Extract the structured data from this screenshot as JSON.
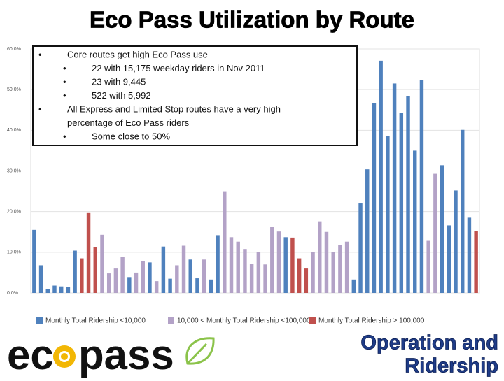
{
  "title": "Eco Pass Utilization by Route",
  "logo": [
    "ec",
    "pass"
  ],
  "footer": [
    "Operation and",
    "Ridership"
  ],
  "chart_data": {
    "type": "bar",
    "stacked": false,
    "categories": [
      null,
      null,
      null,
      null,
      null,
      null,
      null,
      null,
      null,
      null,
      null,
      null,
      null,
      null,
      null,
      null,
      null,
      null,
      null,
      null,
      null,
      null,
      null,
      null,
      null,
      null,
      null,
      null,
      null,
      null,
      null,
      null,
      null,
      null,
      null,
      null,
      null,
      null,
      null,
      null,
      null,
      null,
      null,
      null,
      null,
      null,
      null,
      null,
      null,
      null,
      null,
      null,
      null,
      null,
      null,
      null,
      null,
      null,
      null,
      null,
      null,
      null,
      null,
      null,
      null,
      null
    ],
    "series": [
      {
        "name": "Monthly Total Ridership <10,000",
        "color": "#4f81bd",
        "values": [
          15.5,
          6.8,
          1.0,
          1.8,
          1.6,
          1.4,
          10.4,
          null,
          null,
          null,
          null,
          null,
          null,
          null,
          3.9,
          null,
          null,
          7.5,
          null,
          11.4,
          3.5,
          null,
          null,
          8.2,
          3.6,
          null,
          3.3,
          14.2,
          null,
          null,
          null,
          null,
          null,
          null,
          null,
          null,
          null,
          13.7,
          null,
          null,
          null,
          null,
          null,
          null,
          null,
          null,
          null,
          3.3,
          22.0,
          30.4,
          46.6,
          57.1,
          38.6,
          51.5,
          44.2,
          48.4,
          35.0,
          52.3,
          null,
          null,
          31.4,
          16.6,
          25.2,
          40.1,
          18.5,
          null
        ]
      },
      {
        "name": "10,000 < Monthly Total Ridership <100,000",
        "color": "#b3a2c7",
        "values": [
          null,
          null,
          null,
          null,
          null,
          null,
          null,
          null,
          null,
          null,
          14.3,
          4.8,
          6.0,
          8.8,
          null,
          5.0,
          7.8,
          null,
          2.9,
          null,
          null,
          6.8,
          11.6,
          null,
          null,
          8.2,
          null,
          null,
          25.0,
          13.7,
          12.6,
          10.8,
          7.1,
          10.0,
          7.0,
          16.2,
          15.1,
          null,
          null,
          null,
          null,
          10.0,
          17.6,
          15.0,
          10.0,
          11.8,
          12.6,
          null,
          null,
          null,
          null,
          null,
          null,
          null,
          null,
          null,
          null,
          null,
          12.8,
          29.3,
          null,
          null,
          null,
          null,
          null,
          null
        ]
      },
      {
        "name": "Monthly Total Ridership > 100,000",
        "color": "#c0504d",
        "values": [
          null,
          null,
          null,
          null,
          null,
          null,
          null,
          8.5,
          19.8,
          11.2,
          null,
          null,
          null,
          null,
          null,
          null,
          null,
          null,
          null,
          null,
          null,
          null,
          null,
          null,
          null,
          null,
          null,
          null,
          null,
          null,
          null,
          null,
          null,
          null,
          null,
          null,
          null,
          null,
          13.6,
          8.5,
          6.0,
          null,
          null,
          null,
          null,
          null,
          null,
          null,
          null,
          null,
          null,
          null,
          null,
          null,
          null,
          null,
          null,
          null,
          null,
          null,
          null,
          null,
          null,
          null,
          null,
          15.3
        ]
      }
    ],
    "ylim": [
      0,
      60
    ],
    "yticks": [
      {
        "value": 0,
        "label": "0.0%"
      },
      {
        "value": 10,
        "label": "10.0%"
      },
      {
        "value": 20,
        "label": "20.0%"
      },
      {
        "value": 30,
        "label": "30.0%"
      },
      {
        "value": 40,
        "label": "40.0%"
      },
      {
        "value": 50,
        "label": "50.0%"
      },
      {
        "value": 60,
        "label": "60.0%"
      }
    ],
    "grid": true,
    "legend": "bottom",
    "annotation": [
      {
        "text": "Core routes get high Eco Pass use",
        "items": [
          "22 with 15,175 weekday riders in Nov 2011",
          "23 with 9,445",
          "522 with 5,992"
        ]
      },
      {
        "text": [
          "All Express and Limited Stop routes have a very high",
          "percentage of Eco Pass riders"
        ],
        "items": [
          "Some close to 50%"
        ]
      }
    ]
  }
}
